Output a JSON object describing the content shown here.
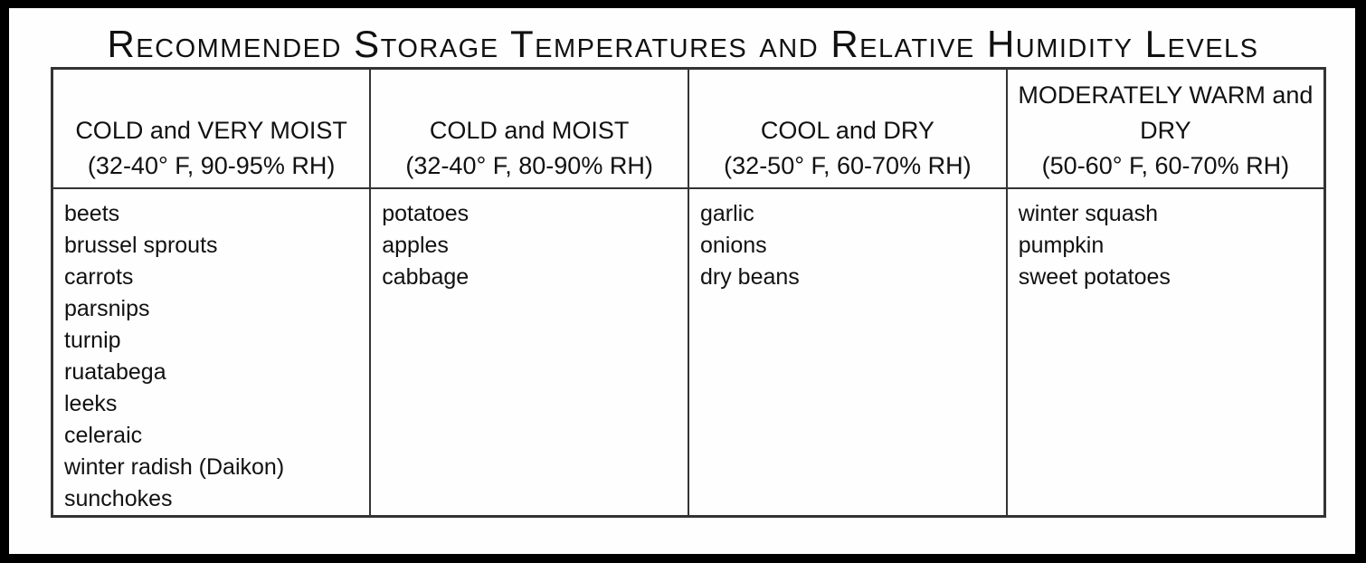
{
  "title": "Recommended Storage Temperatures and Relative Humidity Levels",
  "columns": [
    {
      "heading": "COLD and VERY MOIST",
      "range": "(32-40° F, 90-95% RH)",
      "items": [
        "beets",
        "brussel sprouts",
        "carrots",
        "parsnips",
        "turnip",
        "ruatabega",
        "leeks",
        "celeraic",
        "winter radish (Daikon)",
        "sunchokes"
      ]
    },
    {
      "heading": "COLD and MOIST",
      "range": "(32-40° F, 80-90% RH)",
      "items": [
        "potatoes",
        "apples",
        "cabbage"
      ]
    },
    {
      "heading": "COOL and DRY",
      "range": "(32-50° F, 60-70% RH)",
      "items": [
        "garlic",
        "onions",
        "dry beans"
      ]
    },
    {
      "heading": "MODERATELY WARM and DRY",
      "range": "(50-60° F, 60-70% RH)",
      "items": [
        "winter squash",
        "pumpkin",
        "sweet potatoes"
      ]
    }
  ]
}
